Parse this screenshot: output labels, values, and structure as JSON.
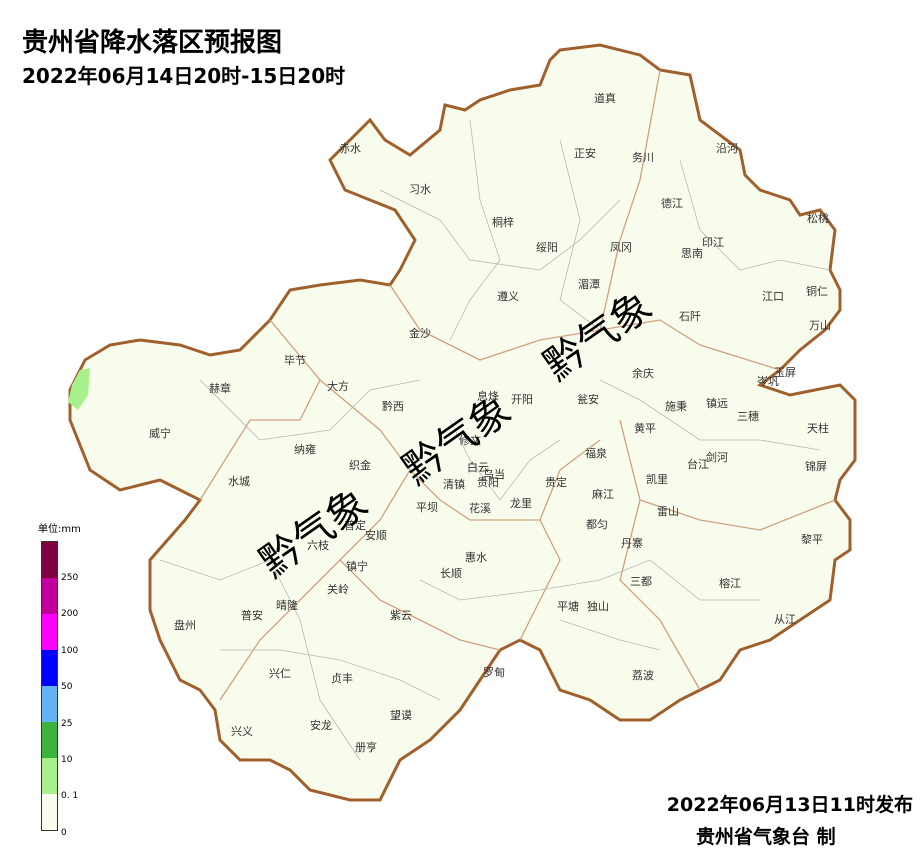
{
  "title": "贵州省降水落区预报图",
  "subtitle": "2022年06月14日20时-15日20时",
  "watermark": "黔气象",
  "legend": {
    "unit": "单位:mm",
    "ticks": [
      "250",
      "200",
      "100",
      "50",
      "25",
      "10",
      "0. 1",
      "0"
    ],
    "colors": [
      "#7f0040",
      "#c0009c",
      "#ff00ff",
      "#0000ff",
      "#64b4f5",
      "#3cb43c",
      "#a8f08c",
      "#f8fcec"
    ]
  },
  "map_fill": "#f8fcec",
  "border_color": "#b07850",
  "counties": [
    "道真",
    "正安",
    "务川",
    "沿河",
    "赤水",
    "习水",
    "桐梓",
    "绥阳",
    "凤冈",
    "德江",
    "印江",
    "思南",
    "松桃",
    "湄潭",
    "遵义",
    "江口",
    "铜仁",
    "石阡",
    "万山",
    "金沙",
    "毕节",
    "大方",
    "赫章",
    "黔西",
    "息烽",
    "开阳",
    "瓮安",
    "余庆",
    "施秉",
    "镇远",
    "岑巩",
    "玉屏",
    "三穗",
    "天柱",
    "威宁",
    "纳雍",
    "黄平",
    "修文",
    "织金",
    "福泉",
    "台江",
    "剑河",
    "锦屏",
    "水城",
    "白云",
    "乌当",
    "清镇",
    "贵阳",
    "贵定",
    "凯里",
    "麻江",
    "雷山",
    "平坝",
    "花溪",
    "龙里",
    "普定",
    "安顺",
    "都匀",
    "丹寨",
    "六枝",
    "镇宁",
    "惠水",
    "黎平",
    "长顺",
    "关岭",
    "三都",
    "榕江",
    "平塘",
    "独山",
    "盘州",
    "普安",
    "晴隆",
    "紫云",
    "从江",
    "兴仁",
    "贞丰",
    "罗甸",
    "荔波",
    "望谟",
    "兴义",
    "安龙",
    "册亨"
  ],
  "footer": {
    "issue_time": "2022年06月13日11时发布",
    "issuer": "贵州省气象台 制"
  }
}
